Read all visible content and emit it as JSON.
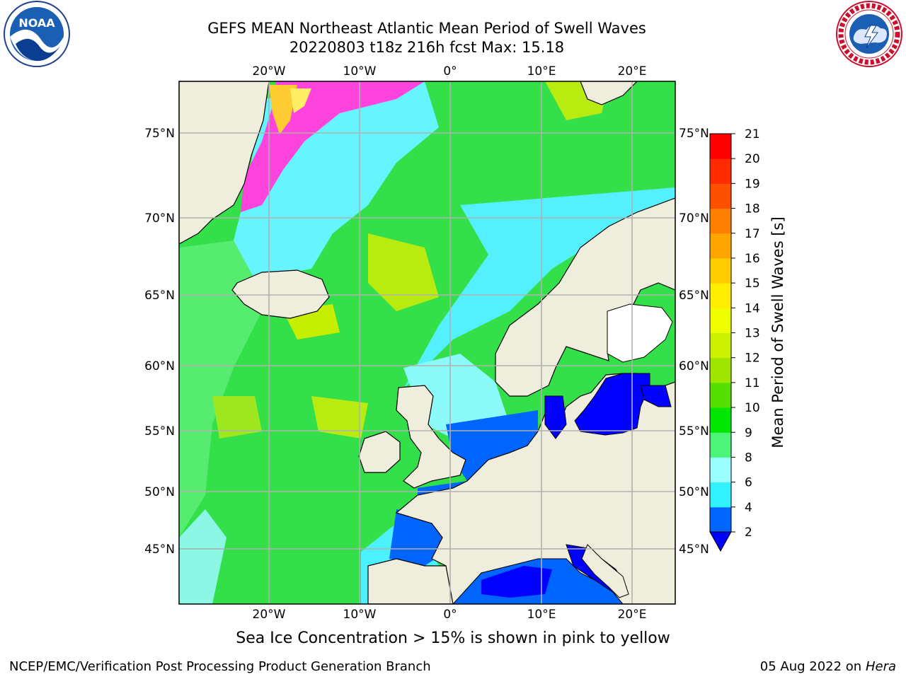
{
  "header": {
    "title_line1": "GEFS MEAN Northeast Atlantic Mean Period of Swell Waves",
    "title_line2": "20220803 t18z 216h fcst   Max: 15.18"
  },
  "logos": {
    "left_icon": "noaa-logo",
    "left_text": "NOAA",
    "right_icon": "nws-logo"
  },
  "map": {
    "longitude_ticks": [
      "20°W",
      "10°W",
      "0°",
      "10°E",
      "20°E"
    ],
    "latitude_ticks": [
      "75°N",
      "70°N",
      "65°N",
      "60°N",
      "55°N",
      "50°N",
      "45°N"
    ],
    "land_color": "#efeddc",
    "grid_color": "#b0b0b0"
  },
  "colorbar": {
    "label": "Mean Period of Swell Waves [s]",
    "ticks": [
      "2",
      "4",
      "6",
      "8",
      "9",
      "10",
      "11",
      "12",
      "13",
      "14",
      "15",
      "16",
      "17",
      "18",
      "19",
      "20",
      "21"
    ],
    "colors": [
      "#0064ff",
      "#00e6ff",
      "#33f2ff",
      "#99ffff",
      "#4cf57a",
      "#00e600",
      "#55e000",
      "#a0e600",
      "#ccf200",
      "#eeff00",
      "#ffee00",
      "#ffcc00",
      "#ffa500",
      "#ff7f00",
      "#ff5000",
      "#ff2a00",
      "#ff0000"
    ],
    "under_color": "#0000ff"
  },
  "caption": "Sea Ice Concentration > 15% is shown in pink to yellow",
  "footer": {
    "left": "NCEP/EMC/Verification Post Processing Product Generation Branch",
    "date": "05 Aug 2022 on",
    "host": "Hera"
  }
}
